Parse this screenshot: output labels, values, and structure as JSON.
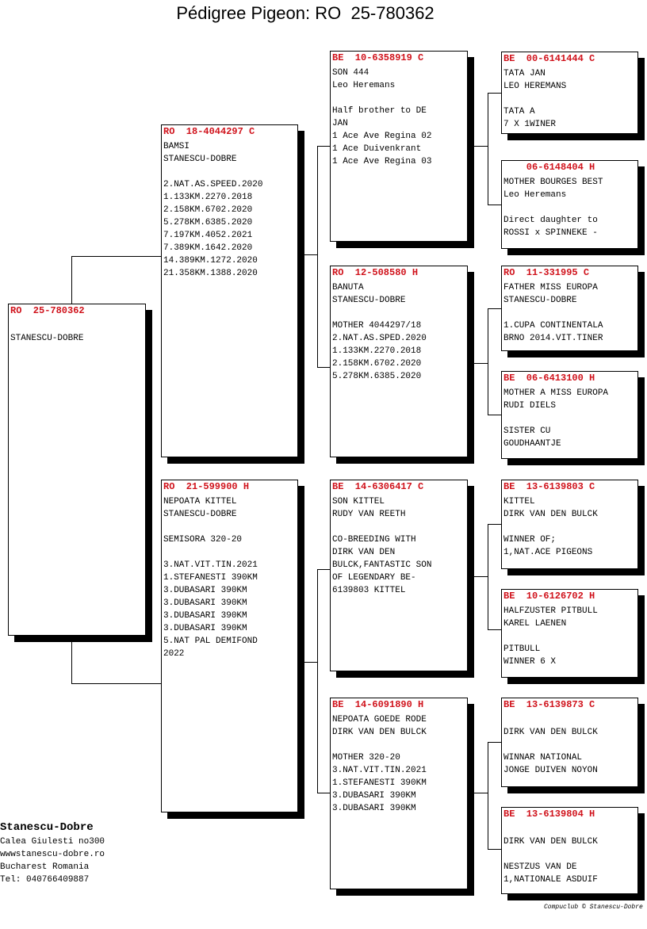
{
  "title": "Pédigree Pigeon: RO  25-780362",
  "pigeons": [
    {
      "header": "RO  25-780362",
      "lines": [
        "",
        "STANESCU-DOBRE"
      ]
    },
    {
      "header": "RO  18-4044297 C",
      "lines": [
        "BAMSI",
        "STANESCU-DOBRE",
        "",
        "2.NAT.AS.SPEED.2020",
        "1.133KM.2270.2018",
        "2.158KM.6702.2020",
        "5.278KM.6385.2020",
        "7.197KM.4052.2021",
        "7.389KM.1642.2020",
        "14.389KM.1272.2020",
        "21.358KM.1388.2020"
      ]
    },
    {
      "header": "RO  21-599900 H",
      "lines": [
        "NEPOATA KITTEL",
        "STANESCU-DOBRE",
        "",
        "SEMISORA 320-20",
        "",
        "3.NAT.VIT.TIN.2021",
        "1.STEFANESTI 390KM",
        "3.DUBASARI 390KM",
        "3.DUBASARI 390KM",
        "3.DUBASARI 390KM",
        "3.DUBASARI 390KM",
        "5.NAT PAL DEMIFOND",
        "2022"
      ]
    },
    {
      "header": "BE  10-6358919 C",
      "lines": [
        "SON 444",
        "Leo Heremans",
        "",
        "Half brother to DE",
        "JAN",
        "1 Ace Ave Regina 02",
        "1 Ace Duivenkrant",
        "1 Ace Ave Regina 03"
      ]
    },
    {
      "header": "RO  12-508580 H",
      "lines": [
        "BANUTA",
        "STANESCU-DOBRE",
        "",
        "MOTHER 4044297/18",
        "2.NAT.AS.SPED.2020",
        "1.133KM.2270.2018",
        "2.158KM.6702.2020",
        "5.278KM.6385.2020"
      ]
    },
    {
      "header": "BE  14-6306417 C",
      "lines": [
        "SON KITTEL",
        "RUDY VAN REETH",
        "",
        "CO-BREEDING WITH",
        "DIRK VAN DEN",
        "BULCK,FANTASTIC SON",
        "OF LEGENDARY BE-",
        "6139803 KITTEL"
      ]
    },
    {
      "header": "BE  14-6091890 H",
      "lines": [
        "NEPOATA GOEDE RODE",
        "DIRK VAN DEN BULCK",
        "",
        "MOTHER 320-20",
        "3.NAT.VIT.TIN.2021",
        "1.STEFANESTI 390KM",
        "3.DUBASARI 390KM",
        "3.DUBASARI 390KM"
      ]
    },
    {
      "header": "BE  00-6141444 C",
      "lines": [
        "TATA JAN",
        "LEO HEREMANS",
        "",
        "TATA A",
        "7 X 1WINER"
      ]
    },
    {
      "header": "    06-6148404 H",
      "lines": [
        "MOTHER BOURGES BEST",
        "Leo Heremans",
        "",
        "Direct daughter to",
        "ROSSI x SPINNEKE -"
      ]
    },
    {
      "header": "RO  11-331995 C",
      "lines": [
        "FATHER MISS EUROPA",
        "STANESCU-DOBRE",
        "",
        "1.CUPA CONTINENTALA",
        "BRNO 2014.VIT.TINER"
      ]
    },
    {
      "header": "BE  06-6413100 H",
      "lines": [
        "MOTHER A MISS EUROPA",
        "RUDI DIELS",
        "",
        "SISTER CU",
        "GOUDHAANTJE"
      ]
    },
    {
      "header": "BE  13-6139803 C",
      "lines": [
        "KITTEL",
        "DIRK VAN DEN BULCK",
        "",
        "WINNER OF;",
        "1,NAT.ACE PIGEONS"
      ]
    },
    {
      "header": "BE  10-6126702 H",
      "lines": [
        "HALFZUSTER PITBULL",
        "KAREL LAENEN",
        "",
        "PITBULL",
        "WINNER 6 X"
      ]
    },
    {
      "header": "BE  13-6139873 C",
      "lines": [
        "",
        "DIRK VAN DEN BULCK",
        "",
        "WINNAR NATIONAL",
        "JONGE DUIVEN NOYON"
      ]
    },
    {
      "header": "BE  13-6139804 H",
      "lines": [
        "",
        "DIRK VAN DEN BULCK",
        "",
        "NESTZUS VAN DE",
        "1,NATIONALE ASDUIF"
      ]
    }
  ],
  "footer": {
    "name": "Stanescu-Dobre",
    "address": "Calea Giulesti no300",
    "website": "wwwstanescu-dobre.ro",
    "city": "Bucharest Romania",
    "phone": "Tel: 040766409887"
  },
  "credit": "Compuclub © Stanescu-Dobre",
  "colors": {
    "ring_number": "#d0121b",
    "text": "#000000",
    "shadow": "#000000"
  }
}
